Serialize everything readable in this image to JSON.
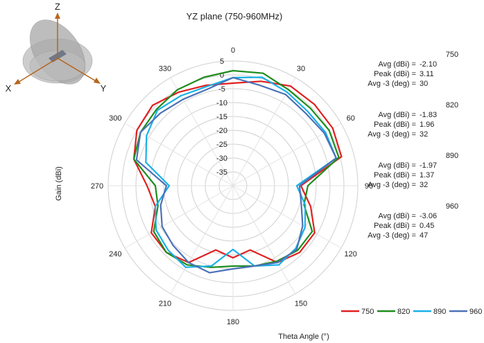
{
  "chart_data": {
    "type": "polar-line",
    "title": "YZ plane (750-960MHz)",
    "ylabel": "Gain (dBi)",
    "xlabel": "Theta  Angle (°)",
    "radial_ticks": [
      "5",
      "0",
      "-5",
      "-10",
      "-15",
      "-20",
      "-25",
      "-30",
      "-35"
    ],
    "radial_range": [
      -40,
      5
    ],
    "angle_labels": [
      "0",
      "30",
      "60",
      "90",
      "120",
      "150",
      "180",
      "210",
      "240",
      "270",
      "300",
      "330"
    ],
    "angles": [
      0,
      15,
      30,
      45,
      60,
      75,
      90,
      105,
      120,
      135,
      150,
      165,
      180,
      195,
      210,
      225,
      240,
      255,
      270,
      285,
      300,
      315,
      330,
      345
    ],
    "grid": true,
    "legend_position": "bottom-right",
    "series": [
      {
        "name": "750",
        "color": "#e02020",
        "values": [
          -3,
          -1,
          1.5,
          1.5,
          1.5,
          0.5,
          -15.5,
          -11,
          -6,
          -6,
          -8,
          -16,
          -14,
          -16,
          -8,
          -6,
          -6,
          -11,
          -9,
          -3,
          0,
          1,
          -1,
          -2.5
        ]
      },
      {
        "name": "820",
        "color": "#1e8c1e",
        "values": [
          1.5,
          2,
          0,
          -0.5,
          0,
          -0.5,
          -13,
          -13.5,
          -7,
          -7,
          -8.5,
          -10,
          -11,
          -9.5,
          -7,
          -6,
          -7,
          -12,
          -12,
          -3,
          -1.5,
          -1,
          0,
          0.5
        ]
      },
      {
        "name": "890",
        "color": "#1ab0e8",
        "values": [
          -1,
          0.5,
          -1,
          -2,
          -1.5,
          -1.5,
          -17,
          -13,
          -10,
          -8,
          -7,
          -10,
          -17,
          -10,
          -6,
          -7,
          -8,
          -11,
          -17,
          -7.5,
          -4,
          -1.5,
          -2.5,
          -3
        ]
      },
      {
        "name": "960",
        "color": "#4a72b8",
        "values": [
          -1,
          -2.5,
          -2,
          -3,
          -2,
          -1.5,
          -16,
          -14.5,
          -11,
          -7.5,
          -8,
          -10,
          -10,
          -7.5,
          -8,
          -9.5,
          -10.5,
          -13,
          -16,
          -4,
          -1.5,
          -3,
          -4,
          -4
        ]
      }
    ]
  },
  "stats": [
    {
      "freq": "750",
      "avg_label": "Avg (dBi) =",
      "avg": "-2.10",
      "peak_label": "Peak (dBi) =",
      "peak": "3.11",
      "avg3_label": "Avg -3 (deg) =",
      "avg3": "30"
    },
    {
      "freq": "820",
      "avg_label": "Avg (dBi) =",
      "avg": "-1.83",
      "peak_label": "Peak (dBi) =",
      "peak": "1.96",
      "avg3_label": "Avg -3 (deg) =",
      "avg3": "32"
    },
    {
      "freq": "890",
      "avg_label": "Avg (dBi) =",
      "avg": "-1.97",
      "peak_label": "Peak (dBi) =",
      "peak": "1.37",
      "avg3_label": "Avg -3 (deg) =",
      "avg3": "32"
    },
    {
      "freq": "960",
      "avg_label": "Avg (dBi) =",
      "avg": "-3.06",
      "peak_label": "Peak (dBi) =",
      "peak": "0.45",
      "avg3_label": "Avg -3 (deg) =",
      "avg3": "47"
    }
  ],
  "axes_icon": {
    "x_label": "X",
    "y_label": "Y",
    "z_label": "Z",
    "arrow_color": "#b5651d"
  }
}
